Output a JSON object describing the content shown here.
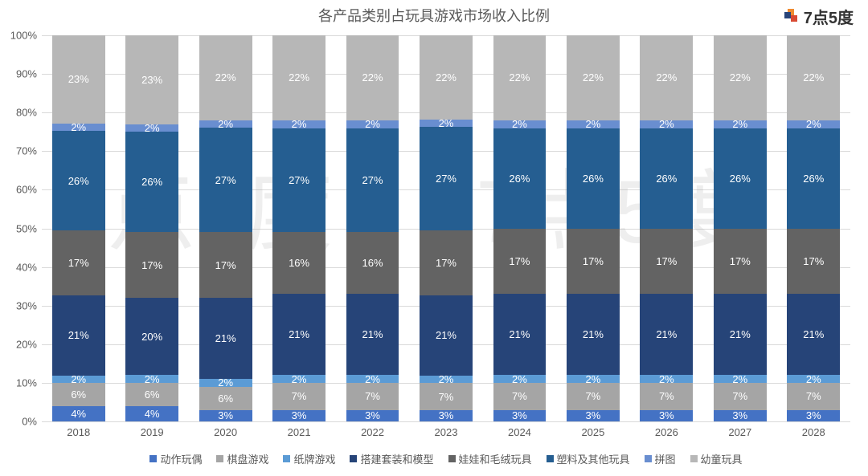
{
  "title": "各产品类别占玩具游戏市场收入比例",
  "logo_text": "7点5度",
  "chart": {
    "type": "stacked-bar-100",
    "ylim": [
      0,
      100
    ],
    "ytick_step": 10,
    "ytick_suffix": "%",
    "grid_color": "#d9d9d9",
    "background": "#ffffff",
    "label_fontsize": 13,
    "categories": [
      "2018",
      "2019",
      "2020",
      "2021",
      "2022",
      "2023",
      "2024",
      "2025",
      "2026",
      "2027",
      "2028"
    ],
    "series": [
      {
        "name": "动作玩偶",
        "color": "#4472c4"
      },
      {
        "name": "棋盘游戏",
        "color": "#a5a5a5"
      },
      {
        "name": "纸牌游戏",
        "color": "#5b9bd5"
      },
      {
        "name": "搭建套装和模型",
        "color": "#264478"
      },
      {
        "name": "娃娃和毛绒玩具",
        "color": "#636363"
      },
      {
        "name": "塑料及其他玩具",
        "color": "#255e91"
      },
      {
        "name": "拼图",
        "color": "#698ed0"
      },
      {
        "name": "幼童玩具",
        "color": "#b7b7b7"
      }
    ],
    "values": [
      [
        4,
        6,
        2,
        21,
        17,
        26,
        2,
        23
      ],
      [
        4,
        6,
        2,
        20,
        17,
        26,
        2,
        23
      ],
      [
        3,
        6,
        2,
        21,
        17,
        27,
        2,
        22
      ],
      [
        3,
        7,
        2,
        21,
        16,
        27,
        2,
        22
      ],
      [
        3,
        7,
        2,
        21,
        16,
        27,
        2,
        22
      ],
      [
        3,
        7,
        2,
        21,
        17,
        27,
        2,
        22
      ],
      [
        3,
        7,
        2,
        21,
        17,
        26,
        2,
        22
      ],
      [
        3,
        7,
        2,
        21,
        17,
        26,
        2,
        22
      ],
      [
        3,
        7,
        2,
        21,
        17,
        26,
        2,
        22
      ],
      [
        3,
        7,
        2,
        21,
        17,
        26,
        2,
        22
      ],
      [
        3,
        7,
        2,
        21,
        17,
        26,
        2,
        22
      ]
    ],
    "value_suffix": "%"
  },
  "watermark": {
    "text": "7点5度",
    "color": "rgba(160,160,160,0.18)",
    "fontsize": 110
  }
}
